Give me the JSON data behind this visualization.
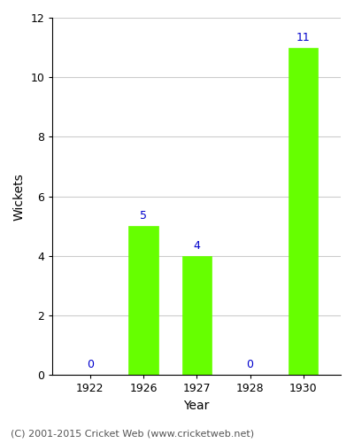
{
  "years": [
    "1922",
    "1926",
    "1927",
    "1928",
    "1930"
  ],
  "wickets": [
    0,
    5,
    4,
    0,
    11
  ],
  "bar_color": "#66ff00",
  "bar_edge_color": "#66ff00",
  "label_color": "#0000cc",
  "ylabel": "Wickets",
  "xlabel": "Year",
  "ylim": [
    0,
    12
  ],
  "yticks": [
    0,
    2,
    4,
    6,
    8,
    10,
    12
  ],
  "grid_color": "#cccccc",
  "background_color": "#ffffff",
  "footnote": "(C) 2001-2015 Cricket Web (www.cricketweb.net)",
  "footnote_color": "#555555",
  "label_fontsize": 9,
  "axis_fontsize": 10,
  "tick_fontsize": 9,
  "footnote_fontsize": 8,
  "bar_width": 0.55
}
